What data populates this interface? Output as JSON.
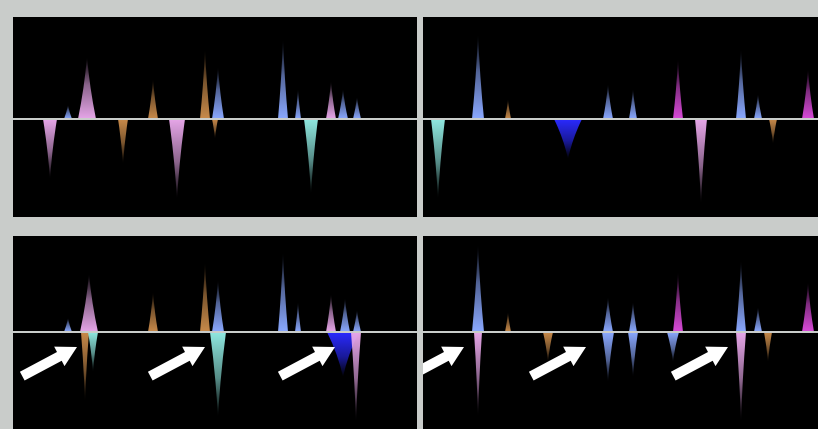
{
  "viewer": {
    "panels": [
      {
        "id": "top-left",
        "highlighted": false
      },
      {
        "id": "top-right",
        "highlighted": false
      },
      {
        "id": "bottom-left",
        "highlighted": true
      },
      {
        "id": "bottom-right",
        "highlighted": true
      }
    ],
    "annotations": {
      "arrow_color": "#ffffff",
      "arrow_count": 6
    },
    "colors": {
      "background": "#000000",
      "frame": "#c9ccca",
      "peak_pink": "#e6a6e8",
      "peak_blue": "#8aa8ff",
      "peak_orange": "#c88a4a",
      "peak_cyan": "#8fe8e0",
      "peak_magenta": "#d84ad8",
      "peak_deep_blue": "#2a2aff"
    }
  }
}
